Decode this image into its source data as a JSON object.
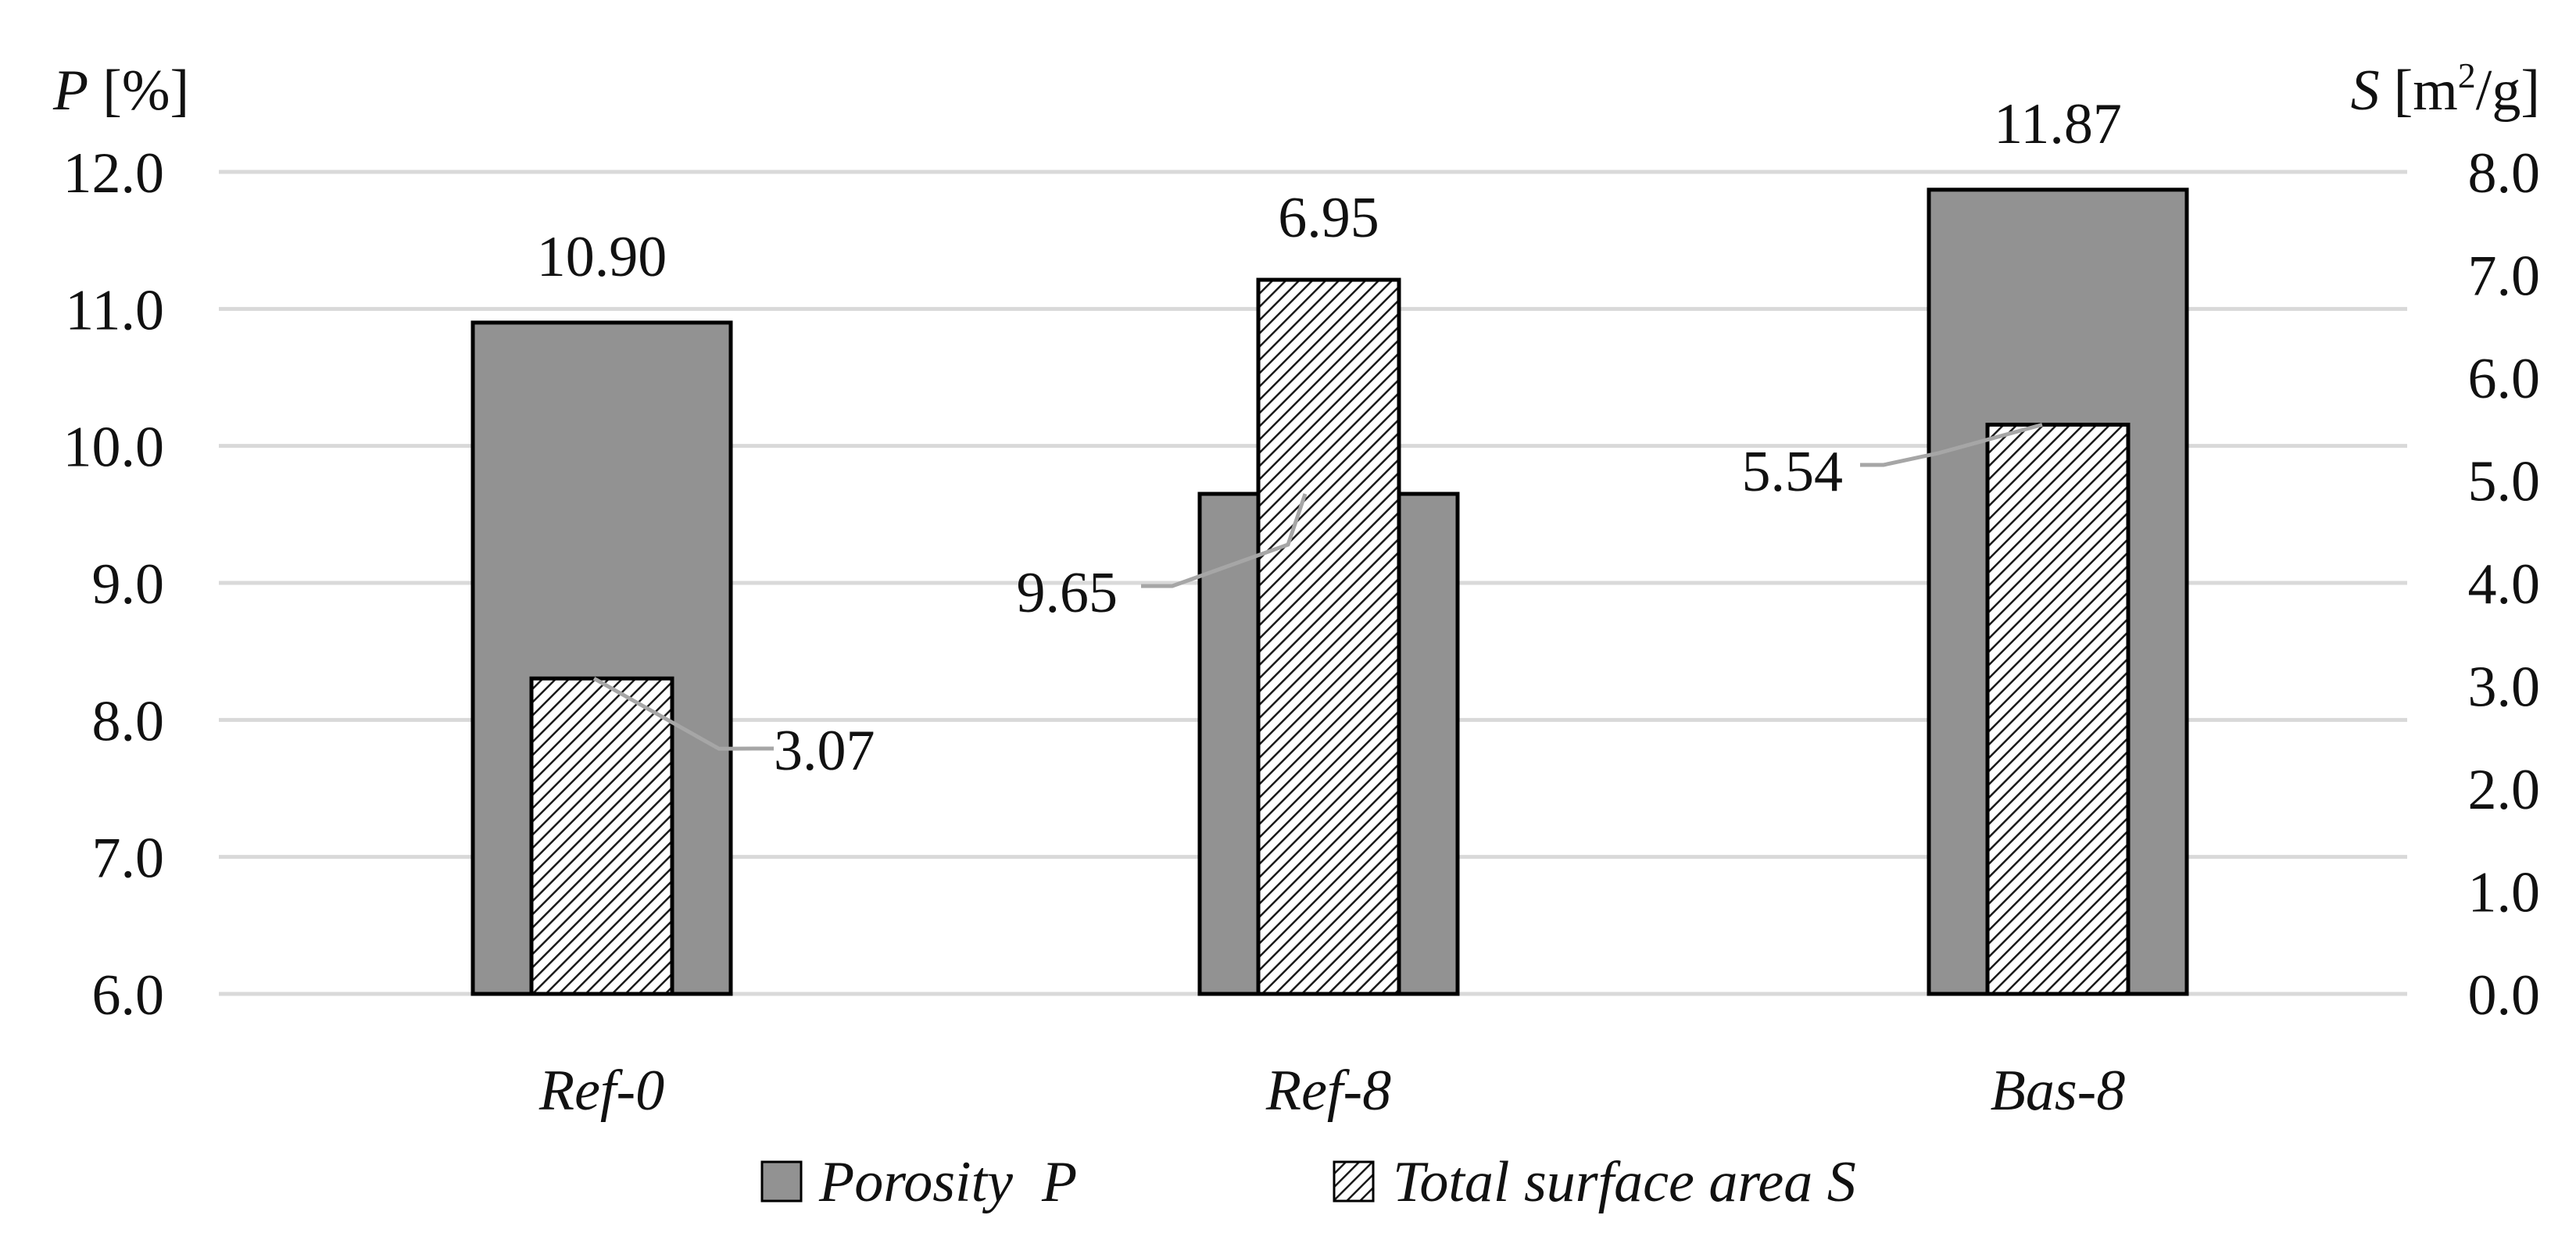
{
  "chart_data": {
    "type": "bar",
    "categories": [
      "Ref-0",
      "Ref-8",
      "Bas-8"
    ],
    "series": [
      {
        "name": "Porosity  P",
        "axis": "left",
        "fill": "solid",
        "values": [
          10.9,
          9.65,
          11.87
        ],
        "labels": [
          "10.90",
          "9.65",
          "11.87"
        ]
      },
      {
        "name": "Total surface area S",
        "axis": "right",
        "fill": "hatched",
        "values": [
          3.07,
          6.95,
          5.54
        ],
        "labels": [
          "3.07",
          "6.95",
          "5.54"
        ]
      }
    ],
    "left_axis": {
      "title_var": "P",
      "title_unit": "[%]",
      "ylim": [
        6.0,
        12.0
      ],
      "ticks": [
        "6.0",
        "7.0",
        "8.0",
        "9.0",
        "10.0",
        "11.0",
        "12.0"
      ]
    },
    "right_axis": {
      "title_var": "S",
      "title_unit_pre": "[m",
      "title_unit_sup": "2",
      "title_unit_post": "/g]",
      "ylim": [
        0.0,
        8.0
      ],
      "ticks": [
        "0.0",
        "1.0",
        "2.0",
        "3.0",
        "4.0",
        "5.0",
        "6.0",
        "7.0",
        "8.0"
      ]
    },
    "grid": true,
    "legend_position": "bottom"
  },
  "colors": {
    "porosity_fill": "#929292",
    "hatch_line": "#1a1a1a",
    "grid": "#d9d9d9",
    "leader": "#a6a6a6",
    "outline": "#000000"
  }
}
